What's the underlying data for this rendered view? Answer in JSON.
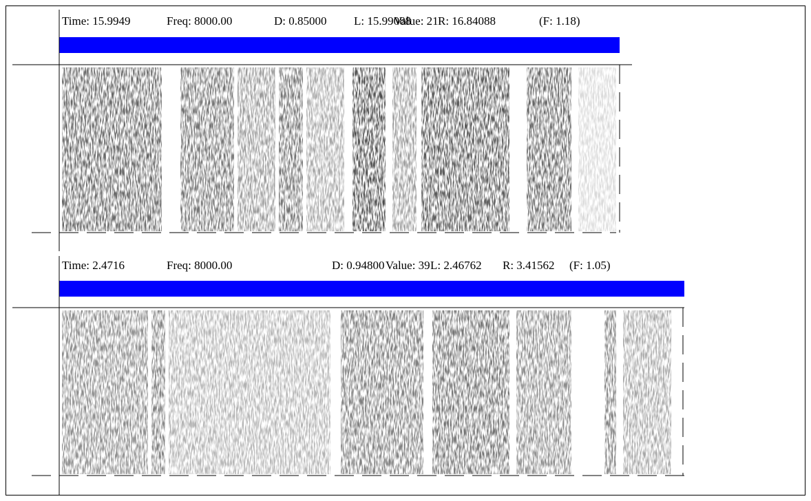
{
  "panels": [
    {
      "time": "Time:  15.9949",
      "freq": "Freq:  8000.00",
      "duration": "D: 0.85000",
      "left": "L: 15.99088",
      "value": "Value: 21",
      "right": "R: 16.84088",
      "f": "(F:    1.18)"
    },
    {
      "time": "Time:   2.4716",
      "freq": "Freq:  8000.00",
      "duration": "D: 0.94800",
      "left": "L: 2.46762",
      "value": "Value: 39",
      "right": "R:  3.41562",
      "f": "(F:    1.05)"
    }
  ]
}
